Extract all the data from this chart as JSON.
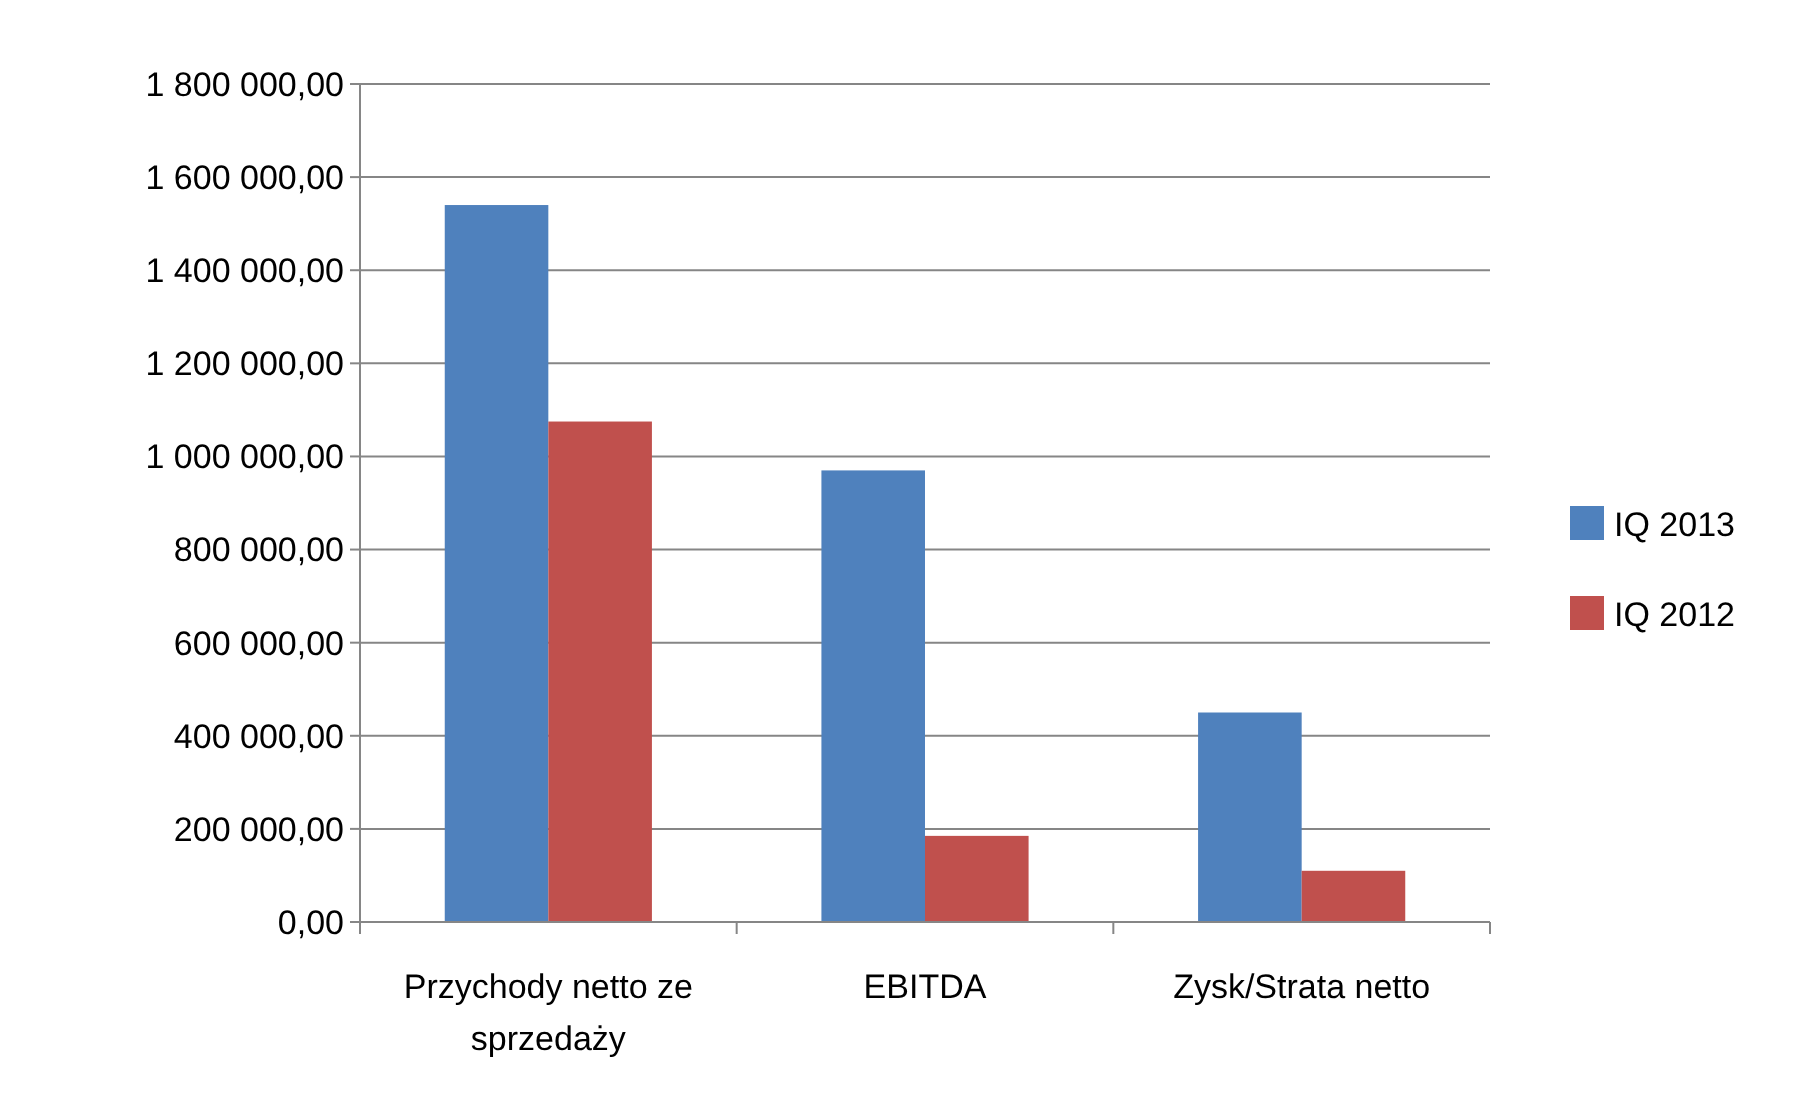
{
  "chart_data": {
    "type": "bar",
    "categories": [
      "Przychody netto ze sprzedaży",
      "EBITDA",
      "Zysk/Strata netto"
    ],
    "series": [
      {
        "name": "IQ 2013",
        "color": "#4f81bd",
        "values": [
          1540000,
          970000,
          450000
        ]
      },
      {
        "name": "IQ 2012",
        "color": "#c0504d",
        "values": [
          1075000,
          185000,
          110000
        ]
      }
    ],
    "ylim": [
      0,
      1800000
    ],
    "yticks": [
      {
        "value": 0,
        "label": "0,00"
      },
      {
        "value": 200000,
        "label": "200 000,00"
      },
      {
        "value": 400000,
        "label": "400 000,00"
      },
      {
        "value": 600000,
        "label": "600 000,00"
      },
      {
        "value": 800000,
        "label": "800 000,00"
      },
      {
        "value": 1000000,
        "label": "1 000 000,00"
      },
      {
        "value": 1200000,
        "label": "1 200 000,00"
      },
      {
        "value": 1400000,
        "label": "1 400 000,00"
      },
      {
        "value": 1600000,
        "label": "1 600 000,00"
      },
      {
        "value": 1800000,
        "label": "1 800 000,00"
      }
    ],
    "grid": "y",
    "legend": "right"
  }
}
